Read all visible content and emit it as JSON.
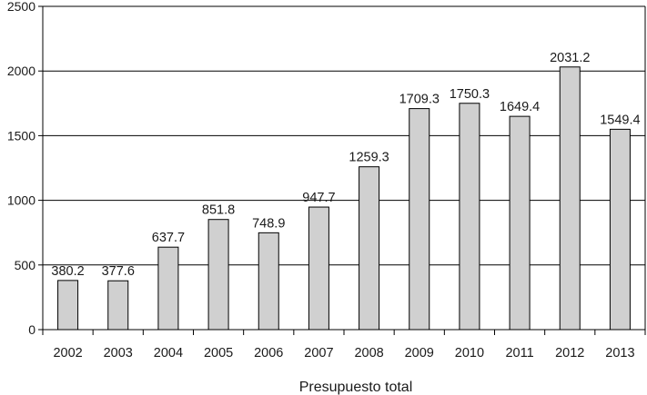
{
  "chart_data": {
    "type": "bar",
    "title": "",
    "xlabel": "Presupuesto total",
    "ylabel": "",
    "categories": [
      "2002",
      "2003",
      "2004",
      "2005",
      "2006",
      "2007",
      "2008",
      "2009",
      "2010",
      "2011",
      "2012",
      "2013"
    ],
    "series": [
      {
        "values": [
          380.2,
          377.6,
          637.7,
          851.8,
          748.9,
          947.7,
          1259.3,
          1709.3,
          1750.3,
          1649.4,
          2031.2,
          1549.4
        ],
        "data_labels": [
          "380.2",
          "377.6",
          "637.7",
          "851.8",
          "748.9",
          "947.7",
          "1259.3",
          "1709.3",
          "1750.3",
          "1649.4",
          "2031.2",
          "1549.4"
        ]
      }
    ],
    "ylim": [
      0,
      2500
    ],
    "yticks": [
      0,
      500,
      1000,
      1500,
      2000,
      2500
    ],
    "ytick_labels": [
      "0",
      "500",
      "1000",
      "1500",
      "2000",
      "2500"
    ],
    "grid": true,
    "legend": "none",
    "colors": {
      "bar_fill": "#d0d0d0",
      "bar_stroke": "#000000",
      "grid": "#000000",
      "axis": "#000000"
    }
  }
}
